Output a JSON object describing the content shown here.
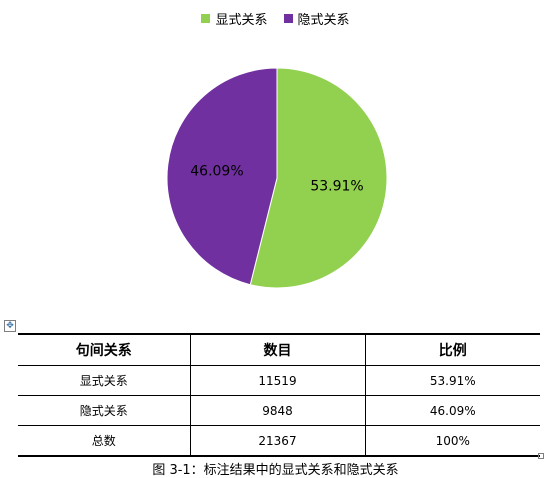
{
  "chart_data": {
    "type": "pie",
    "legend_position": "top",
    "slices": [
      {
        "name": "显式关系",
        "value": 53.91,
        "label": "53.91%",
        "color": "#92d050"
      },
      {
        "name": "隐式关系",
        "value": 46.09,
        "label": "46.09%",
        "color": "#7030a0"
      }
    ]
  },
  "table": {
    "headers": [
      "句间关系",
      "数目",
      "比例"
    ],
    "rows": [
      [
        "显式关系",
        "11519",
        "53.91%"
      ],
      [
        "隐式关系",
        "9848",
        "46.09%"
      ],
      [
        "总数",
        "21367",
        "100%"
      ]
    ]
  },
  "caption": "图 3-1：标注结果中的显式关系和隐式关系",
  "icons": {
    "move_handle": "move-icon"
  }
}
